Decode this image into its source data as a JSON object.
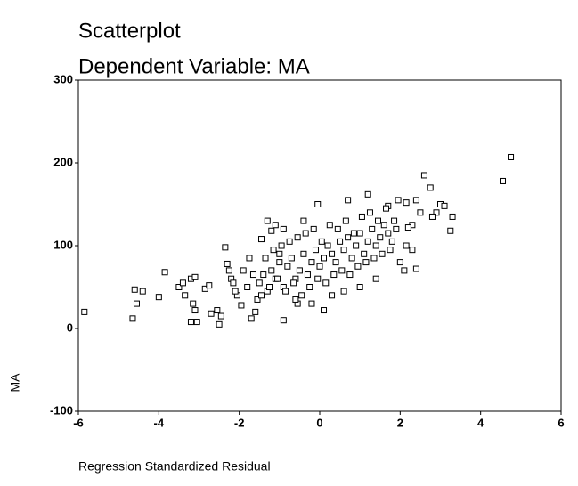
{
  "chart_data": {
    "type": "scatter",
    "title": "Scatterplot",
    "subtitle": "Dependent Variable: MA",
    "x_label": "Regression Standardized Residual",
    "y_label": "MA",
    "xlim": [
      -6,
      6
    ],
    "ylim": [
      -100,
      300
    ],
    "xticks": [
      -6,
      -4,
      -2,
      0,
      2,
      4,
      6
    ],
    "yticks": [
      -100,
      0,
      100,
      200,
      300
    ],
    "grid": false,
    "color": "#000000",
    "x": [
      -5.85,
      -4.6,
      -4.65,
      -4.55,
      -4.4,
      -4.0,
      -3.85,
      -3.5,
      -3.4,
      -3.35,
      -3.2,
      -3.1,
      -3.15,
      -3.1,
      -3.2,
      -3.05,
      -2.85,
      -2.75,
      -2.7,
      -2.55,
      -2.5,
      -2.45,
      -2.35,
      -2.3,
      -2.2,
      -2.05,
      -1.95,
      -1.8,
      -1.7,
      -1.6,
      -1.55,
      -1.45,
      -1.3,
      -1.2,
      -0.9,
      -0.55,
      0.1,
      4.55,
      4.75,
      3.3,
      3.25,
      3.0,
      3.1,
      2.9,
      2.8,
      2.6,
      2.75,
      2.4,
      2.5,
      2.3,
      2.2,
      2.15,
      2.3,
      2.1,
      2.4,
      2.15,
      1.95,
      1.7,
      1.2,
      0.7,
      -0.05,
      -0.4,
      -0.9,
      -1.1,
      -1.5,
      -1.4,
      -1.3,
      -1.2,
      -1.1,
      -1.0,
      -0.9,
      -0.8,
      -0.7,
      -0.6,
      -0.5,
      -0.4,
      -0.3,
      -0.2,
      -0.1,
      0.0,
      0.1,
      0.2,
      0.3,
      0.4,
      0.5,
      0.6,
      0.7,
      0.8,
      0.9,
      1.0,
      1.1,
      1.2,
      1.3,
      1.4,
      1.5,
      1.6,
      1.7,
      1.8,
      -1.45,
      -1.25,
      -1.05,
      -0.85,
      -0.65,
      -0.45,
      -0.25,
      -0.05,
      0.15,
      0.35,
      0.55,
      0.75,
      0.95,
      1.15,
      1.35,
      1.55,
      1.75,
      -1.35,
      -1.15,
      -0.95,
      -0.75,
      -0.55,
      -0.35,
      -0.15,
      0.05,
      0.25,
      0.45,
      0.65,
      0.85,
      1.05,
      1.25,
      1.45,
      1.65,
      -1.9,
      -1.75,
      -1.65,
      -1.0,
      -0.6,
      -0.2,
      0.3,
      0.6,
      1.0,
      1.4,
      1.9,
      2.0,
      1.85,
      -2.1,
      -2.15,
      -2.25
    ],
    "y": [
      20,
      47,
      12,
      30,
      45,
      38,
      68,
      50,
      55,
      40,
      60,
      62,
      30,
      22,
      8,
      8,
      48,
      52,
      18,
      22,
      5,
      15,
      98,
      78,
      60,
      40,
      28,
      50,
      12,
      20,
      35,
      108,
      130,
      118,
      10,
      30,
      22,
      178,
      207,
      135,
      118,
      150,
      148,
      140,
      135,
      185,
      170,
      155,
      140,
      125,
      122,
      100,
      95,
      70,
      72,
      152,
      155,
      148,
      162,
      155,
      150,
      130,
      120,
      125,
      55,
      65,
      45,
      70,
      60,
      80,
      50,
      75,
      85,
      60,
      70,
      90,
      65,
      80,
      95,
      75,
      85,
      100,
      90,
      80,
      105,
      95,
      110,
      85,
      100,
      115,
      90,
      105,
      120,
      100,
      110,
      125,
      115,
      105,
      40,
      50,
      60,
      45,
      55,
      40,
      50,
      60,
      55,
      65,
      70,
      65,
      75,
      80,
      85,
      90,
      95,
      85,
      95,
      100,
      105,
      110,
      115,
      120,
      105,
      125,
      120,
      130,
      115,
      135,
      140,
      130,
      145,
      70,
      85,
      65,
      90,
      35,
      30,
      40,
      45,
      50,
      60,
      120,
      80,
      130,
      45,
      55,
      70
    ]
  }
}
